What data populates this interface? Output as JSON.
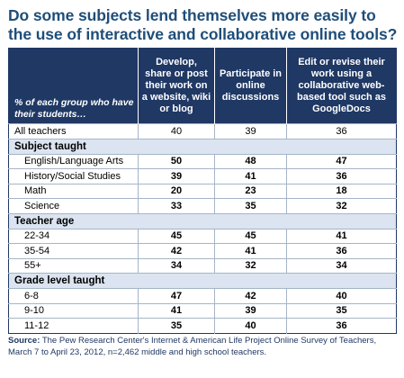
{
  "title": "Do some subjects lend themselves more easily to the use of interactive and collaborative online tools?",
  "chart_data": {
    "type": "table",
    "columns": [
      "% of each group who have their students…",
      "Develop, share or post their work on a website, wiki or blog",
      "Participate in online discussions",
      "Edit or revise their work using a collaborative web-based tool such as GoogleDocs"
    ],
    "rows": [
      {
        "kind": "data",
        "label": "All teachers",
        "values": [
          "40",
          "39",
          "36"
        ],
        "bold": false,
        "indent": false
      },
      {
        "kind": "section",
        "label": "Subject taught"
      },
      {
        "kind": "data",
        "label": "English/Language Arts",
        "values": [
          "50",
          "48",
          "47"
        ],
        "bold": true,
        "indent": true
      },
      {
        "kind": "data",
        "label": "History/Social Studies",
        "values": [
          "39",
          "41",
          "36"
        ],
        "bold": true,
        "indent": true
      },
      {
        "kind": "data",
        "label": "Math",
        "values": [
          "20",
          "23",
          "18"
        ],
        "bold": true,
        "indent": true
      },
      {
        "kind": "data",
        "label": "Science",
        "values": [
          "33",
          "35",
          "32"
        ],
        "bold": true,
        "indent": true
      },
      {
        "kind": "section",
        "label": "Teacher age"
      },
      {
        "kind": "data",
        "label": "22-34",
        "values": [
          "45",
          "45",
          "41"
        ],
        "bold": true,
        "indent": true
      },
      {
        "kind": "data",
        "label": "35-54",
        "values": [
          "42",
          "41",
          "36"
        ],
        "bold": true,
        "indent": true
      },
      {
        "kind": "data",
        "label": "55+",
        "values": [
          "34",
          "32",
          "34"
        ],
        "bold": true,
        "indent": true
      },
      {
        "kind": "section",
        "label": "Grade level taught"
      },
      {
        "kind": "data",
        "label": "6-8",
        "values": [
          "47",
          "42",
          "40"
        ],
        "bold": true,
        "indent": true
      },
      {
        "kind": "data",
        "label": "9-10",
        "values": [
          "41",
          "39",
          "35"
        ],
        "bold": true,
        "indent": true
      },
      {
        "kind": "data",
        "label": "11-12",
        "values": [
          "35",
          "40",
          "36"
        ],
        "bold": true,
        "indent": true
      }
    ]
  },
  "source": {
    "label": "Source:",
    "text": "The Pew Research Center's Internet & American Life Project Online Survey of Teachers, March 7 to April 23, 2012, n=2,462 middle and high school teachers."
  }
}
